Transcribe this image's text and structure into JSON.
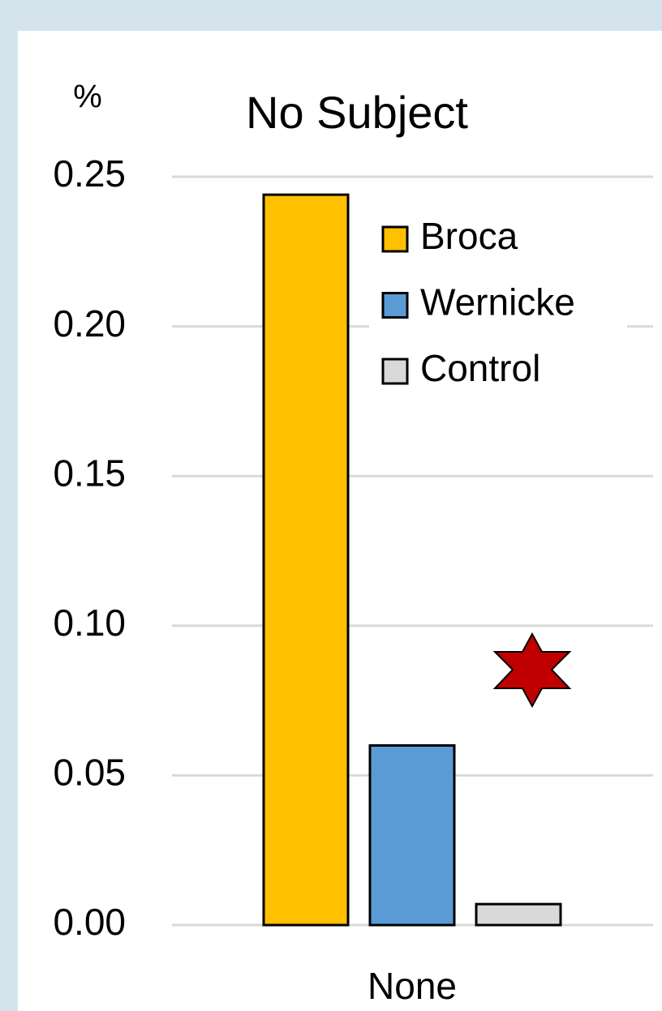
{
  "chart_data": {
    "type": "bar",
    "title": "No Subject",
    "ylabel": "%",
    "categories": [
      "None"
    ],
    "series": [
      {
        "name": "Broca",
        "color": "#ffc000",
        "values": [
          0.244
        ]
      },
      {
        "name": "Wernicke",
        "color": "#5b9bd5",
        "values": [
          0.06
        ]
      },
      {
        "name": "Control",
        "color": "#d9d9d9",
        "values": [
          0.007
        ]
      }
    ],
    "ylim": [
      0,
      0.25
    ],
    "yticks": [
      {
        "value": 0,
        "label": "0.00"
      },
      {
        "value": 0.05,
        "label": "0.05"
      },
      {
        "value": 0.1,
        "label": "0.10"
      },
      {
        "value": 0.15,
        "label": "0.15"
      },
      {
        "value": 0.2,
        "label": "0.20"
      },
      {
        "value": 0.25,
        "label": "0.25"
      }
    ],
    "grid": true,
    "legend": "upper right"
  }
}
